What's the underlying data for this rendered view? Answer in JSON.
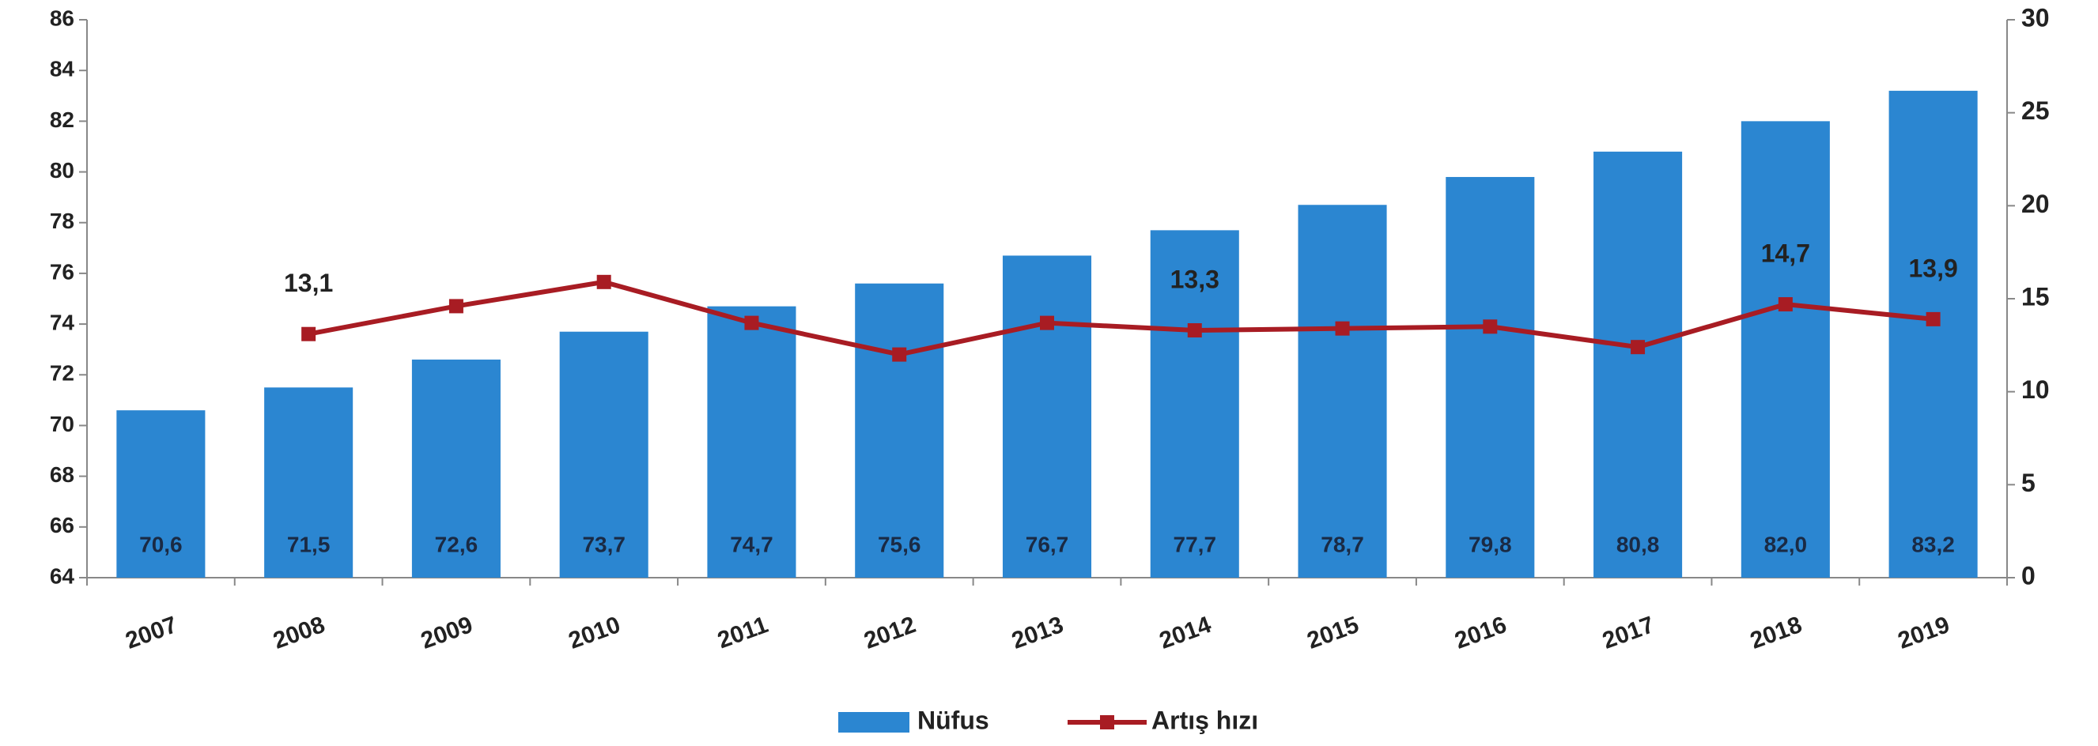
{
  "chart_data": {
    "type": "bar-line",
    "categories": [
      "2007",
      "2008",
      "2009",
      "2010",
      "2011",
      "2012",
      "2013",
      "2014",
      "2015",
      "2016",
      "2017",
      "2018",
      "2019"
    ],
    "series": [
      {
        "name": "Nüfus",
        "type": "bar",
        "color": "#2b86d1",
        "values": [
          70.6,
          71.5,
          72.6,
          73.7,
          74.7,
          75.6,
          76.7,
          77.7,
          78.7,
          79.8,
          80.8,
          82.0,
          83.2
        ],
        "value_labels": [
          "70,6",
          "71,5",
          "72,6",
          "73,7",
          "74,7",
          "75,6",
          "76,7",
          "77,7",
          "78,7",
          "79,8",
          "80,8",
          "82,0",
          "83,2"
        ]
      },
      {
        "name": "Artış hızı",
        "type": "line",
        "axis": "y2",
        "color": "#a81c23",
        "values": [
          null,
          13.1,
          14.6,
          15.9,
          13.7,
          12.0,
          13.7,
          13.3,
          13.4,
          13.5,
          12.4,
          14.7,
          13.9
        ],
        "value_labels": [
          null,
          "13,1",
          null,
          null,
          null,
          null,
          null,
          "13,3",
          null,
          null,
          null,
          "14,7",
          "13,9"
        ]
      }
    ],
    "ylim": [
      64,
      86
    ],
    "yticks": [
      64,
      66,
      68,
      70,
      72,
      74,
      76,
      78,
      80,
      82,
      84,
      86
    ],
    "y2lim": [
      0,
      30
    ],
    "y2ticks": [
      0,
      5,
      10,
      15,
      20,
      25,
      30
    ],
    "legend": "bottom"
  }
}
